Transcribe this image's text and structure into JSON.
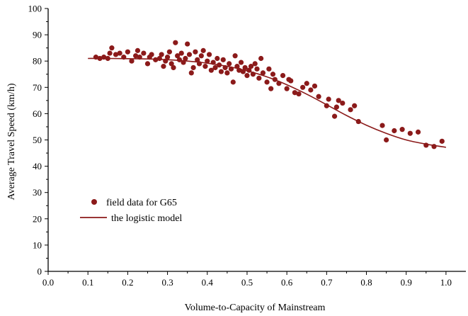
{
  "chart_data": {
    "type": "scatter",
    "title": "",
    "xlabel": "Volume-to-Capacity of Mainstream",
    "ylabel": "Average Travel Speed (km/h)",
    "xlim": [
      0.0,
      1.05
    ],
    "ylim": [
      0,
      100
    ],
    "x_ticks": [
      "0.0",
      "0.1",
      "0.2",
      "0.3",
      "0.4",
      "0.5",
      "0.6",
      "0.7",
      "0.8",
      "0.9",
      "1.0"
    ],
    "y_ticks": [
      "0",
      "10",
      "20",
      "30",
      "40",
      "50",
      "60",
      "70",
      "80",
      "90",
      "100"
    ],
    "grid": false,
    "legend_position": "lower-left",
    "colors": {
      "series": "#8b1a1a",
      "axis": "#000000"
    },
    "series": [
      {
        "name": "field data for G65",
        "kind": "scatter",
        "points": [
          [
            0.12,
            81.5
          ],
          [
            0.13,
            81.0
          ],
          [
            0.14,
            81.5
          ],
          [
            0.15,
            81.0
          ],
          [
            0.155,
            83.0
          ],
          [
            0.16,
            85.0
          ],
          [
            0.17,
            82.5
          ],
          [
            0.18,
            83.0
          ],
          [
            0.19,
            81.5
          ],
          [
            0.2,
            83.5
          ],
          [
            0.21,
            80.0
          ],
          [
            0.22,
            82.0
          ],
          [
            0.225,
            84.0
          ],
          [
            0.23,
            81.5
          ],
          [
            0.24,
            83.0
          ],
          [
            0.25,
            79.0
          ],
          [
            0.255,
            81.5
          ],
          [
            0.26,
            82.5
          ],
          [
            0.27,
            80.5
          ],
          [
            0.28,
            81.0
          ],
          [
            0.285,
            82.5
          ],
          [
            0.29,
            78.0
          ],
          [
            0.295,
            80.0
          ],
          [
            0.3,
            81.5
          ],
          [
            0.305,
            83.5
          ],
          [
            0.31,
            79.0
          ],
          [
            0.315,
            77.5
          ],
          [
            0.32,
            87.0
          ],
          [
            0.325,
            82.0
          ],
          [
            0.33,
            80.5
          ],
          [
            0.335,
            83.0
          ],
          [
            0.34,
            79.5
          ],
          [
            0.345,
            81.0
          ],
          [
            0.35,
            86.5
          ],
          [
            0.355,
            82.5
          ],
          [
            0.36,
            75.5
          ],
          [
            0.365,
            77.5
          ],
          [
            0.37,
            83.5
          ],
          [
            0.375,
            80.5
          ],
          [
            0.38,
            79.0
          ],
          [
            0.385,
            82.0
          ],
          [
            0.39,
            84.0
          ],
          [
            0.395,
            78.0
          ],
          [
            0.4,
            80.0
          ],
          [
            0.405,
            82.5
          ],
          [
            0.41,
            76.5
          ],
          [
            0.415,
            79.5
          ],
          [
            0.42,
            77.5
          ],
          [
            0.425,
            81.0
          ],
          [
            0.43,
            78.5
          ],
          [
            0.435,
            76.0
          ],
          [
            0.44,
            80.5
          ],
          [
            0.445,
            77.5
          ],
          [
            0.45,
            75.5
          ],
          [
            0.455,
            79.0
          ],
          [
            0.46,
            77.0
          ],
          [
            0.465,
            72.0
          ],
          [
            0.47,
            82.0
          ],
          [
            0.475,
            78.0
          ],
          [
            0.48,
            76.5
          ],
          [
            0.485,
            79.5
          ],
          [
            0.49,
            76.0
          ],
          [
            0.495,
            77.5
          ],
          [
            0.5,
            74.5
          ],
          [
            0.505,
            76.5
          ],
          [
            0.51,
            78.0
          ],
          [
            0.515,
            75.0
          ],
          [
            0.52,
            79.0
          ],
          [
            0.525,
            77.0
          ],
          [
            0.53,
            73.5
          ],
          [
            0.535,
            81.0
          ],
          [
            0.54,
            75.5
          ],
          [
            0.55,
            72.0
          ],
          [
            0.555,
            77.0
          ],
          [
            0.56,
            69.5
          ],
          [
            0.565,
            75.0
          ],
          [
            0.57,
            73.0
          ],
          [
            0.58,
            71.5
          ],
          [
            0.59,
            74.5
          ],
          [
            0.6,
            69.5
          ],
          [
            0.605,
            73.0
          ],
          [
            0.61,
            72.5
          ],
          [
            0.62,
            68.0
          ],
          [
            0.63,
            67.5
          ],
          [
            0.64,
            70.0
          ],
          [
            0.65,
            71.5
          ],
          [
            0.66,
            69.0
          ],
          [
            0.67,
            70.5
          ],
          [
            0.68,
            66.5
          ],
          [
            0.7,
            63.0
          ],
          [
            0.705,
            65.5
          ],
          [
            0.72,
            59.0
          ],
          [
            0.725,
            62.5
          ],
          [
            0.73,
            65.0
          ],
          [
            0.74,
            64.0
          ],
          [
            0.76,
            61.5
          ],
          [
            0.77,
            63.0
          ],
          [
            0.78,
            57.0
          ],
          [
            0.84,
            55.5
          ],
          [
            0.85,
            50.0
          ],
          [
            0.87,
            53.5
          ],
          [
            0.89,
            54.0
          ],
          [
            0.91,
            52.5
          ],
          [
            0.93,
            53.0
          ],
          [
            0.95,
            48.0
          ],
          [
            0.97,
            47.5
          ],
          [
            0.99,
            49.5
          ]
        ]
      },
      {
        "name": "the logistic model",
        "kind": "line",
        "points": [
          [
            0.1,
            81.0
          ],
          [
            0.15,
            81.0
          ],
          [
            0.2,
            80.9
          ],
          [
            0.25,
            80.8
          ],
          [
            0.3,
            80.5
          ],
          [
            0.35,
            80.0
          ],
          [
            0.4,
            79.2
          ],
          [
            0.45,
            78.0
          ],
          [
            0.5,
            76.3
          ],
          [
            0.55,
            74.0
          ],
          [
            0.6,
            71.0
          ],
          [
            0.65,
            67.4
          ],
          [
            0.7,
            63.4
          ],
          [
            0.75,
            59.3
          ],
          [
            0.8,
            55.6
          ],
          [
            0.85,
            52.5
          ],
          [
            0.9,
            50.0
          ],
          [
            0.95,
            48.4
          ],
          [
            1.0,
            47.2
          ]
        ]
      }
    ]
  }
}
